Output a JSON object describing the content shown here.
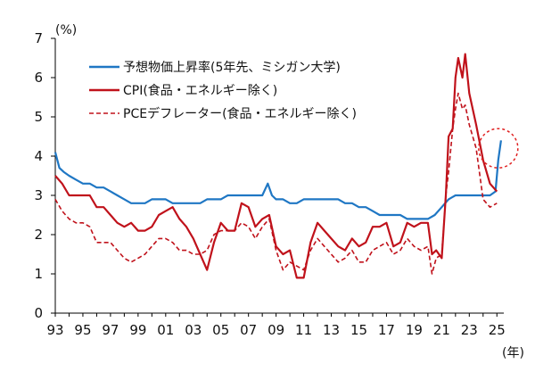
{
  "chart_data": {
    "type": "line",
    "y_unit_label": "(%)",
    "x_unit_label": "(年)",
    "xlim": [
      1993.0,
      2025.5
    ],
    "ylim": [
      0,
      7
    ],
    "yticks": [
      0,
      1,
      2,
      3,
      4,
      5,
      6,
      7
    ],
    "xticks": [
      {
        "x": 1993,
        "label": "93"
      },
      {
        "x": 1995,
        "label": "95"
      },
      {
        "x": 1997,
        "label": "97"
      },
      {
        "x": 1999,
        "label": "99"
      },
      {
        "x": 2001,
        "label": "01"
      },
      {
        "x": 2003,
        "label": "03"
      },
      {
        "x": 2005,
        "label": "05"
      },
      {
        "x": 2007,
        "label": "07"
      },
      {
        "x": 2009,
        "label": "09"
      },
      {
        "x": 2011,
        "label": "11"
      },
      {
        "x": 2013,
        "label": "13"
      },
      {
        "x": 2015,
        "label": "15"
      },
      {
        "x": 2017,
        "label": "17"
      },
      {
        "x": 2019,
        "label": "19"
      },
      {
        "x": 2021,
        "label": "21"
      },
      {
        "x": 2023,
        "label": "23"
      },
      {
        "x": 2025,
        "label": "25"
      }
    ],
    "grid": false,
    "legend_position": "top-left",
    "annotation": {
      "type": "dashed-circle",
      "color": "#e02020",
      "x": 2025.1,
      "y": 4.2
    },
    "series": [
      {
        "name": "予想物価上昇率(5年先、ミシガン大学)",
        "color": "#1f77c4",
        "style": "solid",
        "points": [
          [
            1993.0,
            4.1
          ],
          [
            1993.3,
            3.7
          ],
          [
            1993.6,
            3.6
          ],
          [
            1994.0,
            3.5
          ],
          [
            1994.5,
            3.4
          ],
          [
            1995.0,
            3.3
          ],
          [
            1995.5,
            3.3
          ],
          [
            1996.0,
            3.2
          ],
          [
            1996.5,
            3.2
          ],
          [
            1997.0,
            3.1
          ],
          [
            1997.5,
            3.0
          ],
          [
            1998.0,
            2.9
          ],
          [
            1998.5,
            2.8
          ],
          [
            1999.0,
            2.8
          ],
          [
            1999.5,
            2.8
          ],
          [
            2000.0,
            2.9
          ],
          [
            2000.5,
            2.9
          ],
          [
            2001.0,
            2.9
          ],
          [
            2001.5,
            2.8
          ],
          [
            2002.0,
            2.8
          ],
          [
            2002.5,
            2.8
          ],
          [
            2003.0,
            2.8
          ],
          [
            2003.5,
            2.8
          ],
          [
            2004.0,
            2.9
          ],
          [
            2004.5,
            2.9
          ],
          [
            2005.0,
            2.9
          ],
          [
            2005.5,
            3.0
          ],
          [
            2006.0,
            3.0
          ],
          [
            2006.5,
            3.0
          ],
          [
            2007.0,
            3.0
          ],
          [
            2007.5,
            3.0
          ],
          [
            2008.0,
            3.0
          ],
          [
            2008.4,
            3.3
          ],
          [
            2008.7,
            3.0
          ],
          [
            2009.0,
            2.9
          ],
          [
            2009.5,
            2.9
          ],
          [
            2010.0,
            2.8
          ],
          [
            2010.5,
            2.8
          ],
          [
            2011.0,
            2.9
          ],
          [
            2011.5,
            2.9
          ],
          [
            2012.0,
            2.9
          ],
          [
            2012.5,
            2.9
          ],
          [
            2013.0,
            2.9
          ],
          [
            2013.5,
            2.9
          ],
          [
            2014.0,
            2.8
          ],
          [
            2014.5,
            2.8
          ],
          [
            2015.0,
            2.7
          ],
          [
            2015.5,
            2.7
          ],
          [
            2016.0,
            2.6
          ],
          [
            2016.5,
            2.5
          ],
          [
            2017.0,
            2.5
          ],
          [
            2017.5,
            2.5
          ],
          [
            2018.0,
            2.5
          ],
          [
            2018.5,
            2.4
          ],
          [
            2019.0,
            2.4
          ],
          [
            2019.5,
            2.4
          ],
          [
            2020.0,
            2.4
          ],
          [
            2020.5,
            2.5
          ],
          [
            2021.0,
            2.7
          ],
          [
            2021.5,
            2.9
          ],
          [
            2022.0,
            3.0
          ],
          [
            2022.5,
            3.0
          ],
          [
            2023.0,
            3.0
          ],
          [
            2023.5,
            3.0
          ],
          [
            2024.0,
            3.0
          ],
          [
            2024.5,
            3.0
          ],
          [
            2024.9,
            3.1
          ],
          [
            2025.1,
            3.9
          ],
          [
            2025.3,
            4.4
          ]
        ]
      },
      {
        "name": "CPI(食品・エネルギー除く)",
        "color": "#c0121b",
        "style": "solid",
        "points": [
          [
            1993.0,
            3.5
          ],
          [
            1993.5,
            3.3
          ],
          [
            1994.0,
            3.0
          ],
          [
            1994.5,
            3.0
          ],
          [
            1995.0,
            3.0
          ],
          [
            1995.5,
            3.0
          ],
          [
            1996.0,
            2.7
          ],
          [
            1996.5,
            2.7
          ],
          [
            1997.0,
            2.5
          ],
          [
            1997.5,
            2.3
          ],
          [
            1998.0,
            2.2
          ],
          [
            1998.5,
            2.3
          ],
          [
            1999.0,
            2.1
          ],
          [
            1999.5,
            2.1
          ],
          [
            2000.0,
            2.2
          ],
          [
            2000.5,
            2.5
          ],
          [
            2001.0,
            2.6
          ],
          [
            2001.5,
            2.7
          ],
          [
            2002.0,
            2.4
          ],
          [
            2002.5,
            2.2
          ],
          [
            2003.0,
            1.9
          ],
          [
            2003.5,
            1.5
          ],
          [
            2004.0,
            1.1
          ],
          [
            2004.5,
            1.8
          ],
          [
            2005.0,
            2.3
          ],
          [
            2005.5,
            2.1
          ],
          [
            2006.0,
            2.1
          ],
          [
            2006.5,
            2.8
          ],
          [
            2007.0,
            2.7
          ],
          [
            2007.5,
            2.2
          ],
          [
            2008.0,
            2.4
          ],
          [
            2008.5,
            2.5
          ],
          [
            2009.0,
            1.7
          ],
          [
            2009.5,
            1.5
          ],
          [
            2010.0,
            1.6
          ],
          [
            2010.5,
            0.9
          ],
          [
            2011.0,
            0.9
          ],
          [
            2011.5,
            1.8
          ],
          [
            2012.0,
            2.3
          ],
          [
            2012.5,
            2.1
          ],
          [
            2013.0,
            1.9
          ],
          [
            2013.5,
            1.7
          ],
          [
            2014.0,
            1.6
          ],
          [
            2014.5,
            1.9
          ],
          [
            2015.0,
            1.7
          ],
          [
            2015.5,
            1.8
          ],
          [
            2016.0,
            2.2
          ],
          [
            2016.5,
            2.2
          ],
          [
            2017.0,
            2.3
          ],
          [
            2017.5,
            1.7
          ],
          [
            2018.0,
            1.8
          ],
          [
            2018.5,
            2.3
          ],
          [
            2019.0,
            2.2
          ],
          [
            2019.5,
            2.3
          ],
          [
            2020.0,
            2.3
          ],
          [
            2020.3,
            1.5
          ],
          [
            2020.6,
            1.6
          ],
          [
            2021.0,
            1.4
          ],
          [
            2021.3,
            3.0
          ],
          [
            2021.5,
            4.5
          ],
          [
            2021.8,
            4.7
          ],
          [
            2022.0,
            6.0
          ],
          [
            2022.2,
            6.5
          ],
          [
            2022.5,
            6.0
          ],
          [
            2022.7,
            6.6
          ],
          [
            2023.0,
            5.6
          ],
          [
            2023.5,
            4.8
          ],
          [
            2024.0,
            3.9
          ],
          [
            2024.5,
            3.3
          ],
          [
            2025.0,
            3.1
          ]
        ]
      },
      {
        "name": "PCEデフレーター(食品・エネルギー除く)",
        "color": "#c0121b",
        "style": "dashed",
        "points": [
          [
            1993.0,
            2.9
          ],
          [
            1993.5,
            2.6
          ],
          [
            1994.0,
            2.4
          ],
          [
            1994.5,
            2.3
          ],
          [
            1995.0,
            2.3
          ],
          [
            1995.5,
            2.2
          ],
          [
            1996.0,
            1.8
          ],
          [
            1996.5,
            1.8
          ],
          [
            1997.0,
            1.8
          ],
          [
            1997.5,
            1.6
          ],
          [
            1998.0,
            1.4
          ],
          [
            1998.5,
            1.3
          ],
          [
            1999.0,
            1.4
          ],
          [
            1999.5,
            1.5
          ],
          [
            2000.0,
            1.7
          ],
          [
            2000.5,
            1.9
          ],
          [
            2001.0,
            1.9
          ],
          [
            2001.5,
            1.8
          ],
          [
            2002.0,
            1.6
          ],
          [
            2002.5,
            1.6
          ],
          [
            2003.0,
            1.5
          ],
          [
            2003.5,
            1.5
          ],
          [
            2004.0,
            1.6
          ],
          [
            2004.5,
            2.0
          ],
          [
            2005.0,
            2.1
          ],
          [
            2005.5,
            2.1
          ],
          [
            2006.0,
            2.1
          ],
          [
            2006.5,
            2.3
          ],
          [
            2007.0,
            2.2
          ],
          [
            2007.5,
            1.9
          ],
          [
            2008.0,
            2.2
          ],
          [
            2008.5,
            2.4
          ],
          [
            2009.0,
            1.6
          ],
          [
            2009.5,
            1.1
          ],
          [
            2010.0,
            1.3
          ],
          [
            2010.5,
            1.2
          ],
          [
            2011.0,
            1.1
          ],
          [
            2011.5,
            1.6
          ],
          [
            2012.0,
            1.9
          ],
          [
            2012.5,
            1.7
          ],
          [
            2013.0,
            1.5
          ],
          [
            2013.5,
            1.3
          ],
          [
            2014.0,
            1.4
          ],
          [
            2014.5,
            1.6
          ],
          [
            2015.0,
            1.3
          ],
          [
            2015.5,
            1.3
          ],
          [
            2016.0,
            1.6
          ],
          [
            2016.5,
            1.7
          ],
          [
            2017.0,
            1.8
          ],
          [
            2017.5,
            1.5
          ],
          [
            2018.0,
            1.6
          ],
          [
            2018.5,
            1.9
          ],
          [
            2019.0,
            1.7
          ],
          [
            2019.5,
            1.6
          ],
          [
            2020.0,
            1.7
          ],
          [
            2020.3,
            1.0
          ],
          [
            2020.6,
            1.4
          ],
          [
            2021.0,
            1.5
          ],
          [
            2021.3,
            3.0
          ],
          [
            2021.5,
            3.6
          ],
          [
            2021.8,
            4.7
          ],
          [
            2022.0,
            5.2
          ],
          [
            2022.2,
            5.6
          ],
          [
            2022.5,
            5.2
          ],
          [
            2022.7,
            5.3
          ],
          [
            2023.0,
            4.8
          ],
          [
            2023.5,
            4.2
          ],
          [
            2024.0,
            2.9
          ],
          [
            2024.5,
            2.7
          ],
          [
            2025.0,
            2.8
          ]
        ]
      }
    ]
  }
}
